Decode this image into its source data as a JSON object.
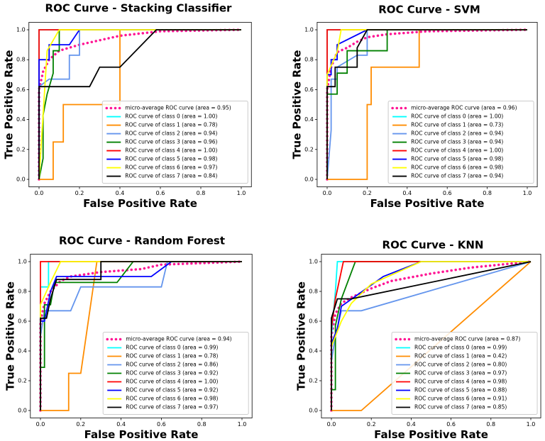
{
  "chart_data": [
    {
      "type": "line",
      "title": "ROC Curve - Stacking Classifier",
      "xlabel": "False Positive Rate",
      "ylabel": "True Positive Rate",
      "xlim": [
        -0.05,
        1.05
      ],
      "ylim": [
        -0.05,
        1.05
      ],
      "xticks": [
        {
          "value": 0,
          "label": "0.0"
        },
        0.2,
        0.4,
        0.6,
        0.8,
        {
          "value": 1,
          "label": "1.0"
        }
      ],
      "yticks": [
        {
          "value": 0,
          "label": "0.0"
        },
        0.2,
        0.4,
        0.6,
        0.8,
        {
          "value": 1,
          "label": "1.0"
        }
      ],
      "legend": "lower right",
      "series": [
        {
          "name": "micro-average ROC curve (area = 0.95)",
          "color": "deeppink",
          "linestyle": "dotted",
          "x": [
            0,
            0,
            0.02,
            0.05,
            0.1,
            0.2,
            0.3,
            0.4,
            0.6,
            1
          ],
          "values": [
            0,
            0.6,
            0.72,
            0.8,
            0.86,
            0.9,
            0.93,
            0.96,
            0.99,
            1
          ]
        },
        {
          "name": "ROC curve of class 0 (area = 1.00)",
          "color": "aqua",
          "x": [
            0,
            0,
            1
          ],
          "values": [
            0,
            1,
            1
          ]
        },
        {
          "name": "ROC curve of class 1 (area = 0.78)",
          "color": "darkorange",
          "x": [
            0,
            0.07,
            0.07,
            0.12,
            0.12,
            0.4,
            0.4,
            1
          ],
          "values": [
            0,
            0,
            0.25,
            0.25,
            0.5,
            0.5,
            1,
            1
          ]
        },
        {
          "name": "ROC curve of class 2 (area = 0.94)",
          "color": "cornflowerblue",
          "x": [
            0,
            0,
            0.05,
            0.15,
            0.15,
            0.2,
            0.2,
            1
          ],
          "values": [
            0,
            0.62,
            0.67,
            0.67,
            0.83,
            0.83,
            1,
            1
          ]
        },
        {
          "name": "ROC curve of class 3 (area = 0.96)",
          "color": "green",
          "x": [
            0,
            0.02,
            0.02,
            0.04,
            0.07,
            0.07,
            0.1,
            0.1,
            1
          ],
          "values": [
            0,
            0.14,
            0.43,
            0.57,
            0.71,
            0.86,
            0.86,
            1,
            1
          ]
        },
        {
          "name": "ROC curve of class 4 (area = 1.00)",
          "color": "red",
          "x": [
            0,
            0,
            1
          ],
          "values": [
            0,
            1,
            1
          ]
        },
        {
          "name": "ROC curve of class 5 (area = 0.98)",
          "color": "blue",
          "x": [
            0,
            0,
            0.05,
            0.05,
            0.15,
            0.2,
            1
          ],
          "values": [
            0,
            0.8,
            0.8,
            0.9,
            0.9,
            1,
            1
          ]
        },
        {
          "name": "ROC curve of class 6 (area = 0.97)",
          "color": "yellow",
          "x": [
            0,
            0.02,
            0.04,
            0.1,
            1
          ],
          "values": [
            0,
            0.43,
            0.86,
            1,
            1
          ]
        },
        {
          "name": "ROC curve of class 7 (area = 0.84)",
          "color": "black",
          "x": [
            0,
            0,
            0.25,
            0.3,
            0.4,
            0.58,
            1
          ],
          "values": [
            0,
            0.62,
            0.62,
            0.75,
            0.75,
            1,
            1
          ]
        }
      ]
    },
    {
      "type": "line",
      "title": "ROC Curve - SVM",
      "xlabel": "False Positive Rate",
      "ylabel": "True Positive Rate",
      "xlim": [
        -0.05,
        1.05
      ],
      "ylim": [
        -0.05,
        1.05
      ],
      "xticks": [
        {
          "value": 0,
          "label": "0.0"
        },
        0.2,
        0.4,
        0.6,
        0.8,
        {
          "value": 1,
          "label": "1.0"
        }
      ],
      "yticks": [
        {
          "value": 0,
          "label": "0.0"
        },
        0.2,
        0.4,
        0.6,
        0.8,
        {
          "value": 1,
          "label": "1.0"
        }
      ],
      "legend": "lower right",
      "series": [
        {
          "name": "micro-average ROC curve (area = 0.96)",
          "color": "deeppink",
          "linestyle": "dotted",
          "x": [
            0,
            0,
            0.02,
            0.05,
            0.1,
            0.15,
            0.2,
            0.3,
            0.5,
            1
          ],
          "values": [
            0,
            0.6,
            0.75,
            0.85,
            0.88,
            0.92,
            0.95,
            0.97,
            0.99,
            1
          ]
        },
        {
          "name": "ROC curve of class 0 (area = 1.00)",
          "color": "aqua",
          "x": [
            0,
            0,
            1
          ],
          "values": [
            0,
            1,
            1
          ]
        },
        {
          "name": "ROC curve of class 1 (area = 0.73)",
          "color": "darkorange",
          "x": [
            0,
            0.2,
            0.2,
            0.22,
            0.22,
            0.46,
            0.46,
            1
          ],
          "values": [
            0,
            0,
            0.5,
            0.5,
            0.75,
            0.75,
            1,
            1
          ]
        },
        {
          "name": "ROC curve of class 2 (area = 0.94)",
          "color": "cornflowerblue",
          "x": [
            0,
            0.02,
            0.02,
            0.05,
            0.05,
            0.15,
            0.2,
            0.2,
            1
          ],
          "values": [
            0,
            0.33,
            0.67,
            0.67,
            0.75,
            0.83,
            0.83,
            1,
            1
          ]
        },
        {
          "name": "ROC curve of class 3 (area = 0.94)",
          "color": "green",
          "x": [
            0,
            0,
            0.05,
            0.05,
            0.1,
            0.1,
            0.3,
            0.3,
            1
          ],
          "values": [
            0,
            0.57,
            0.57,
            0.71,
            0.71,
            0.86,
            0.86,
            1,
            1
          ]
        },
        {
          "name": "ROC curve of class 4 (area = 1.00)",
          "color": "red",
          "x": [
            0,
            0,
            1
          ],
          "values": [
            0,
            1,
            1
          ]
        },
        {
          "name": "ROC curve of class 5 (area = 0.98)",
          "color": "blue",
          "x": [
            0,
            0,
            0.02,
            0.02,
            0.05,
            0.05,
            0.2,
            1
          ],
          "values": [
            0,
            0.7,
            0.7,
            0.8,
            0.8,
            0.9,
            1,
            1
          ]
        },
        {
          "name": "ROC curve of class 6 (area = 0.98)",
          "color": "yellow",
          "x": [
            0,
            0,
            0.05,
            0.07,
            1
          ],
          "values": [
            0,
            0.7,
            0.85,
            1,
            1
          ]
        },
        {
          "name": "ROC curve of class 7 (area = 0.94)",
          "color": "black",
          "x": [
            0,
            0,
            0.04,
            0.04,
            0.15,
            0.15,
            0.2,
            1
          ],
          "values": [
            0,
            0.62,
            0.62,
            0.75,
            0.75,
            0.88,
            1,
            1
          ]
        }
      ]
    },
    {
      "type": "line",
      "title": "ROC Curve - Random Forest",
      "xlabel": "False Positive Rate",
      "ylabel": "True Positive Rate",
      "xlim": [
        -0.05,
        1.05
      ],
      "ylim": [
        -0.05,
        1.05
      ],
      "xticks": [
        {
          "value": 0,
          "label": "0.0"
        },
        0.2,
        0.4,
        0.6,
        0.8,
        {
          "value": 1,
          "label": "1.0"
        }
      ],
      "yticks": [
        {
          "value": 0,
          "label": "0.0"
        },
        0.2,
        0.4,
        0.6,
        0.8,
        {
          "value": 1,
          "label": "1.0"
        }
      ],
      "legend": "lower right",
      "series": [
        {
          "name": "micro-average ROC curve (area = 0.94)",
          "color": "deeppink",
          "linestyle": "dotted",
          "x": [
            0,
            0,
            0.02,
            0.05,
            0.1,
            0.15,
            0.3,
            0.5,
            0.6,
            1
          ],
          "values": [
            0,
            0.6,
            0.72,
            0.8,
            0.87,
            0.9,
            0.93,
            0.95,
            0.98,
            1
          ]
        },
        {
          "name": "ROC curve of class 0 (area = 0.99)",
          "color": "aqua",
          "x": [
            0,
            0,
            0.04,
            0.04,
            1
          ],
          "values": [
            0,
            0.83,
            0.83,
            1,
            1
          ]
        },
        {
          "name": "ROC curve of class 1 (area = 0.78)",
          "color": "darkorange",
          "x": [
            0,
            0.14,
            0.14,
            0.2,
            0.28,
            1
          ],
          "values": [
            0,
            0,
            0.25,
            0.25,
            1,
            1
          ]
        },
        {
          "name": "ROC curve of class 2 (area = 0.86)",
          "color": "cornflowerblue",
          "x": [
            0,
            0,
            0.02,
            0.15,
            0.2,
            0.6,
            0.63,
            1
          ],
          "values": [
            0,
            0.5,
            0.67,
            0.67,
            0.83,
            0.83,
            1,
            1
          ]
        },
        {
          "name": "ROC curve of class 3 (area = 0.92)",
          "color": "green",
          "x": [
            0,
            0,
            0.02,
            0.02,
            0.05,
            0.07,
            0.38,
            0.46,
            1
          ],
          "values": [
            0,
            0.29,
            0.29,
            0.71,
            0.71,
            0.86,
            0.86,
            1,
            1
          ]
        },
        {
          "name": "ROC curve of class 4 (area = 1.00)",
          "color": "red",
          "x": [
            0,
            0,
            1
          ],
          "values": [
            0,
            1,
            1
          ]
        },
        {
          "name": "ROC curve of class 5 (area = 0.92)",
          "color": "blue",
          "x": [
            0,
            0,
            0.02,
            0.05,
            0.08,
            0.55,
            0.65,
            1
          ],
          "values": [
            0,
            0.6,
            0.6,
            0.8,
            0.9,
            0.9,
            1,
            1
          ]
        },
        {
          "name": "ROC curve of class 6 (area = 0.98)",
          "color": "yellow",
          "x": [
            0,
            0,
            0.05,
            0.1,
            1
          ],
          "values": [
            0,
            0.71,
            0.86,
            1,
            1
          ]
        },
        {
          "name": "ROC curve of class 7 (area = 0.97)",
          "color": "black",
          "x": [
            0,
            0,
            0.03,
            0.05,
            0.08,
            0.3,
            0.3,
            1
          ],
          "values": [
            0,
            0.62,
            0.62,
            0.75,
            0.88,
            0.88,
            1,
            1
          ]
        }
      ]
    },
    {
      "type": "line",
      "title": "ROC Curve - KNN",
      "xlabel": "False Positive Rate",
      "ylabel": "True Positive Rate",
      "xlim": [
        -0.05,
        1.05
      ],
      "ylim": [
        -0.05,
        1.05
      ],
      "xticks": [
        {
          "value": 0,
          "label": "0.0"
        },
        0.2,
        0.4,
        0.6,
        0.8,
        {
          "value": 1,
          "label": "1.0"
        }
      ],
      "yticks": [
        {
          "value": 0,
          "label": "0.0"
        },
        0.2,
        0.4,
        0.6,
        0.8,
        {
          "value": 1,
          "label": "1.0"
        }
      ],
      "legend": "lower right",
      "series": [
        {
          "name": "micro-average ROC curve (area = 0.87)",
          "color": "deeppink",
          "linestyle": "dotted",
          "x": [
            0,
            0,
            0.02,
            0.05,
            0.1,
            0.2,
            0.3,
            0.5,
            0.7,
            1
          ],
          "values": [
            0,
            0.5,
            0.65,
            0.72,
            0.76,
            0.82,
            0.87,
            0.92,
            0.96,
            1
          ]
        },
        {
          "name": "ROC curve of class 0 (area = 0.99)",
          "color": "aqua",
          "x": [
            0,
            0,
            0.02,
            0.03,
            1
          ],
          "values": [
            0,
            0.5,
            0.8,
            1,
            1
          ]
        },
        {
          "name": "ROC curve of class 1 (area = 0.42)",
          "color": "darkorange",
          "x": [
            0,
            0.15,
            1
          ],
          "values": [
            0,
            0,
            1
          ]
        },
        {
          "name": "ROC curve of class 2 (area = 0.80)",
          "color": "cornflowerblue",
          "x": [
            0,
            0,
            0.02,
            0.05,
            0.15,
            1
          ],
          "values": [
            0,
            0.33,
            0.5,
            0.67,
            0.67,
            1
          ]
        },
        {
          "name": "ROC curve of class 3 (area = 0.97)",
          "color": "green",
          "x": [
            0,
            0,
            0.02,
            0.02,
            0.05,
            0.12,
            1
          ],
          "values": [
            0,
            0.14,
            0.14,
            0.57,
            0.75,
            1,
            1
          ]
        },
        {
          "name": "ROC curve of class 4 (area = 0.98)",
          "color": "red",
          "x": [
            0,
            0,
            0.02,
            0.06,
            1
          ],
          "values": [
            0,
            0.55,
            0.75,
            1,
            1
          ]
        },
        {
          "name": "ROC curve of class 5 (area = 0.88)",
          "color": "blue",
          "x": [
            0,
            0,
            0.03,
            0.05,
            0.26,
            0.45,
            1
          ],
          "values": [
            0,
            0.45,
            0.55,
            0.7,
            0.9,
            1,
            1
          ]
        },
        {
          "name": "ROC curve of class 6 (area = 0.91)",
          "color": "yellow",
          "x": [
            0,
            0,
            0.05,
            0.1,
            0.2,
            0.45,
            1
          ],
          "values": [
            0,
            0.43,
            0.6,
            0.72,
            0.85,
            1,
            1
          ]
        },
        {
          "name": "ROC curve of class 7 (area = 0.85)",
          "color": "black",
          "x": [
            0,
            0,
            0.03,
            0.1,
            1
          ],
          "values": [
            0,
            0.62,
            0.75,
            0.75,
            1
          ]
        }
      ]
    }
  ]
}
